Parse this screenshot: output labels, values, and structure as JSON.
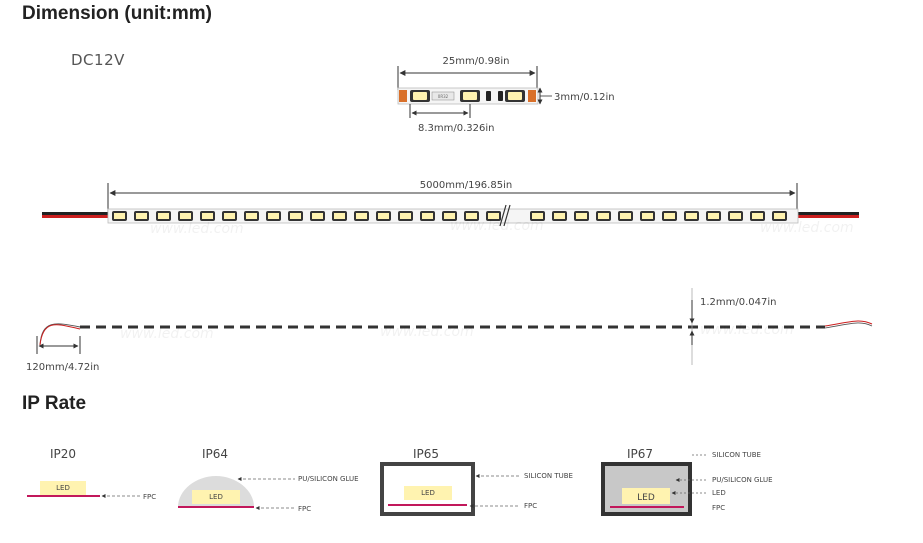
{
  "headings": {
    "dimension": "Dimension (unit:mm)",
    "ip_rate": "IP Rate"
  },
  "voltage": "DC12V",
  "segment": {
    "length": "25mm/0.98in",
    "height": "3mm/0.12in",
    "pitch": "8.3mm/0.326in"
  },
  "strip": {
    "length": "5000mm/196.85in"
  },
  "side": {
    "thickness": "1.2mm/0.047in",
    "wire": "120mm/4.72in"
  },
  "ip": {
    "ip20": {
      "title": "IP20",
      "led": "LED",
      "fpc": "FPC"
    },
    "ip64": {
      "title": "IP64",
      "led": "LED",
      "glue": "PU/SILICON GLUE",
      "fpc": "FPC"
    },
    "ip65": {
      "title": "IP65",
      "led": "LED",
      "tube": "SILICON TUBE",
      "fpc": "FPC"
    },
    "ip67": {
      "title": "IP67",
      "led": "LED",
      "tube": "SILICON TUBE",
      "glue": "PU/SILICON GLUE",
      "led_label": "LED",
      "fpc": "FPC"
    }
  }
}
